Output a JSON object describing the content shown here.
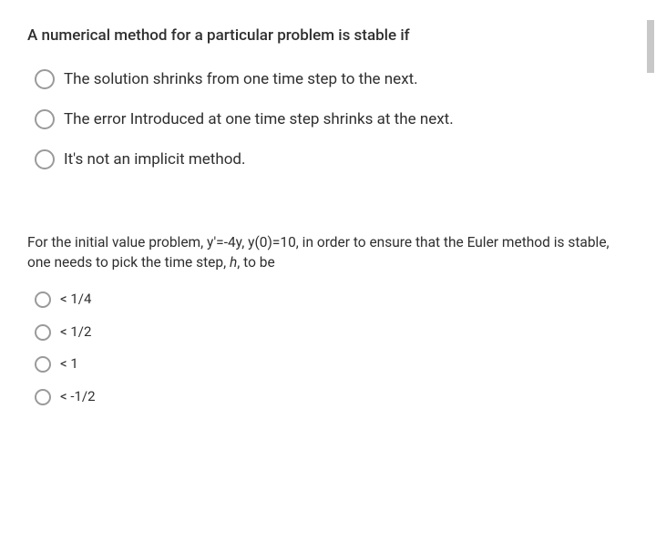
{
  "question1": {
    "prompt": "A numerical method for a particular problem is stable if",
    "options": [
      "The solution shrinks from one time step to the next.",
      "The error Introduced at one time step shrinks at the next.",
      "It's not an implicit method."
    ]
  },
  "question2": {
    "prompt_a": "For the initial value problem, y'=-4y, y(0)=10, in order to ensure that the Euler method is stable, one needs to pick the time step, ",
    "prompt_h": "h",
    "prompt_b": ", to be",
    "options": [
      "< 1/4",
      "< 1/2",
      "< 1",
      "< -1/2"
    ]
  },
  "colors": {
    "text": "#2f2f2f",
    "radio_border": "#9a9a9a",
    "background": "#ffffff",
    "scroll_thumb": "#c8c8c8"
  }
}
